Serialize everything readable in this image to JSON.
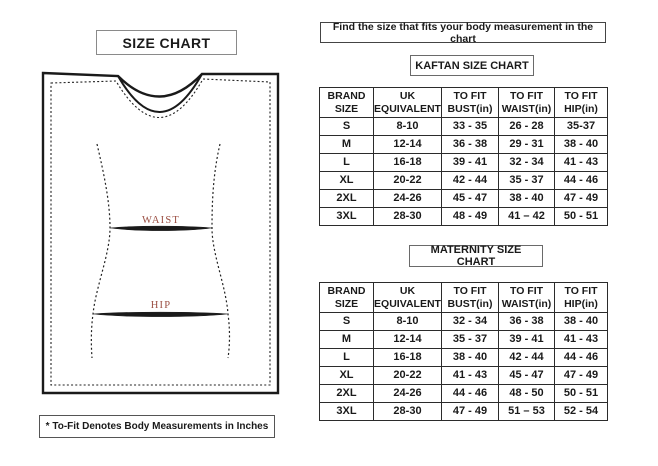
{
  "left": {
    "title": "SIZE CHART",
    "note": "* To-Fit Denotes Body Measurements in Inches",
    "drawing": {
      "waist_label": "WAIST",
      "hip_label": "HIP",
      "label_color": "#9b4f43",
      "line_color": "#1a1a1a"
    }
  },
  "right": {
    "banner": "Find the size that fits your body measurement in the chart",
    "kaftan": {
      "title": "KAFTAN SIZE CHART",
      "columns": [
        "BRAND\nSIZE",
        "UK\nEQUIVALENT",
        "TO FIT\nBUST(in)",
        "TO FIT\nWAIST(in)",
        "TO FIT\nHIP(in)"
      ],
      "rows": [
        [
          "S",
          "8-10",
          "33 - 35",
          "26 - 28",
          "35-37"
        ],
        [
          "M",
          "12-14",
          "36 - 38",
          "29 - 31",
          "38 - 40"
        ],
        [
          "L",
          "16-18",
          "39 - 41",
          "32 - 34",
          "41 - 43"
        ],
        [
          "XL",
          "20-22",
          "42 - 44",
          "35 - 37",
          "44 - 46"
        ],
        [
          "2XL",
          "24-26",
          "45 - 47",
          "38 - 40",
          "47 - 49"
        ],
        [
          "3XL",
          "28-30",
          "48 - 49",
          "41 – 42",
          "50 - 51"
        ]
      ]
    },
    "maternity": {
      "title": "MATERNITY SIZE CHART",
      "columns": [
        "BRAND\nSIZE",
        "UK\nEQUIVALENT",
        "TO FIT\nBUST(in)",
        "TO FIT\nWAIST(in)",
        "TO FIT\nHIP(in)"
      ],
      "rows": [
        [
          "S",
          "8-10",
          "32 - 34",
          "36 - 38",
          "38 - 40"
        ],
        [
          "M",
          "12-14",
          "35 - 37",
          "39 - 41",
          "41 - 43"
        ],
        [
          "L",
          "16-18",
          "38 - 40",
          "42 - 44",
          "44 - 46"
        ],
        [
          "XL",
          "20-22",
          "41 - 43",
          "45 - 47",
          "47 - 49"
        ],
        [
          "2XL",
          "24-26",
          "44 - 46",
          "48 - 50",
          "50 - 51"
        ],
        [
          "3XL",
          "28-30",
          "47 - 49",
          "51 – 53",
          "52 - 54"
        ]
      ]
    }
  }
}
